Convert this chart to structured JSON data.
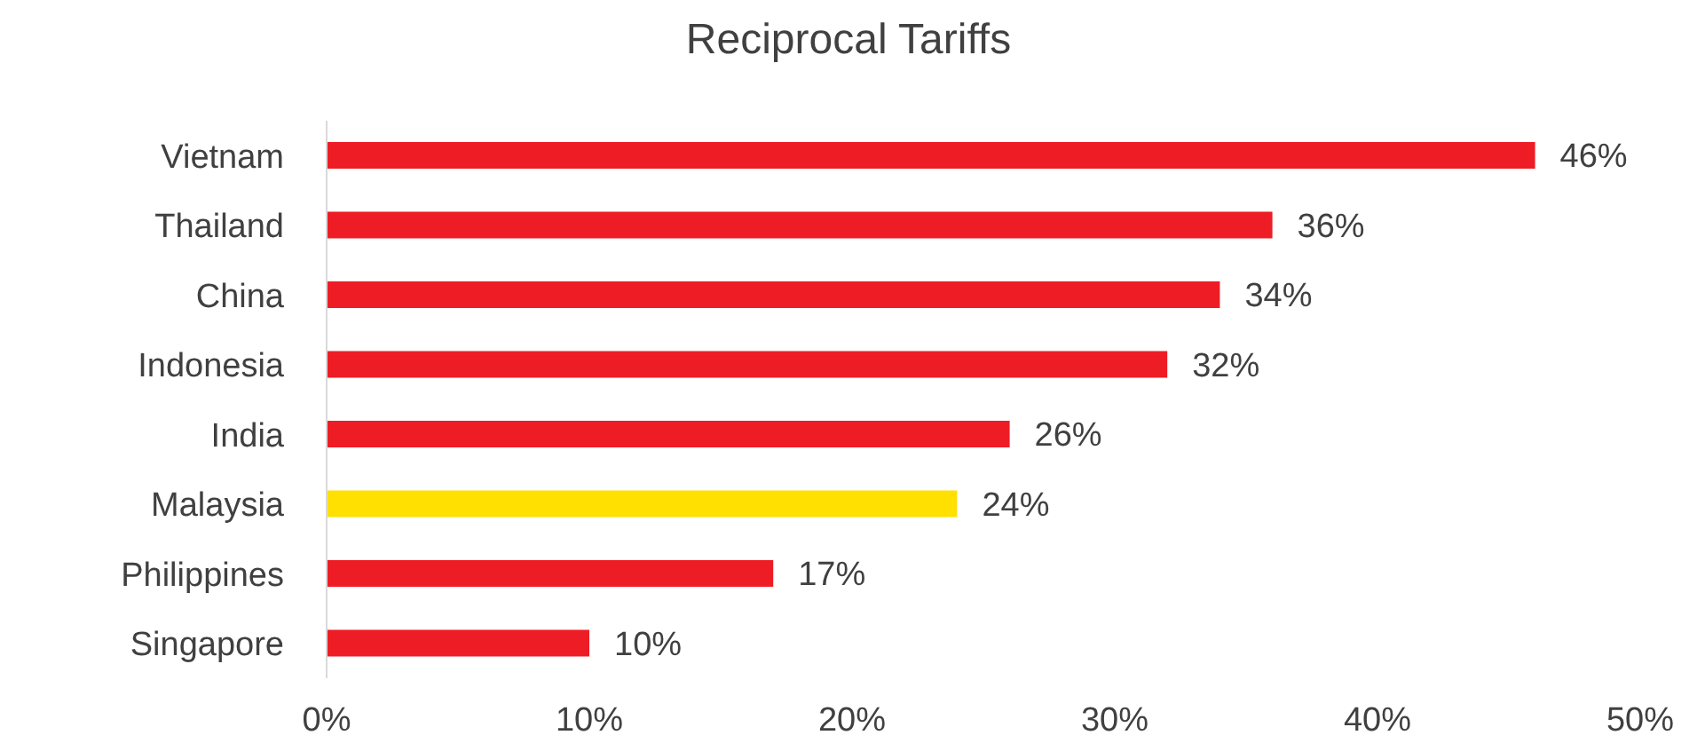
{
  "chart_data": {
    "type": "bar",
    "orientation": "horizontal",
    "title": "Reciprocal Tariffs",
    "categories": [
      "Vietnam",
      "Thailand",
      "China",
      "Indonesia",
      "India",
      "Malaysia",
      "Philippines",
      "Singapore"
    ],
    "values": [
      46,
      36,
      34,
      32,
      26,
      24,
      17,
      10
    ],
    "colors": [
      "#ee1c25",
      "#ee1c25",
      "#ee1c25",
      "#ee1c25",
      "#ee1c25",
      "#ffe000",
      "#ee1c25",
      "#ee1c25"
    ],
    "value_labels": [
      "46%",
      "36%",
      "34%",
      "32%",
      "26%",
      "24%",
      "17%",
      "10%"
    ],
    "xlim": [
      0,
      50
    ],
    "xticks": [
      {
        "value": 0,
        "label": "0%"
      },
      {
        "value": 10,
        "label": "10%"
      },
      {
        "value": 20,
        "label": "20%"
      },
      {
        "value": 30,
        "label": "30%"
      },
      {
        "value": 40,
        "label": "40%"
      },
      {
        "value": 50,
        "label": "50%"
      }
    ],
    "grid": false,
    "legend": false
  }
}
